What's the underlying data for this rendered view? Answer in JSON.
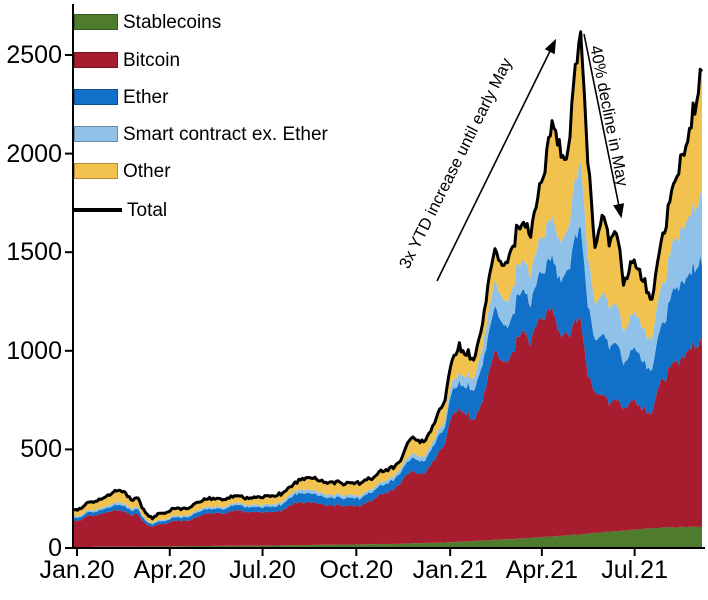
{
  "legend": {
    "items": [
      {
        "label": "Stablecoins",
        "color": "#4f7b2d",
        "swatch": "box"
      },
      {
        "label": "Bitcoin",
        "color": "#a81c30",
        "swatch": "box"
      },
      {
        "label": "Ether",
        "color": "#1170c7",
        "swatch": "box"
      },
      {
        "label": "Smart contract ex. Ether",
        "color": "#90c1e9",
        "swatch": "box"
      },
      {
        "label": "Other",
        "color": "#f1c24e",
        "swatch": "box"
      },
      {
        "label": "Total",
        "color": "#000000",
        "swatch": "line"
      }
    ]
  },
  "annotations": {
    "increase": "3x YTD increase until early May",
    "decline": "40% decline in May"
  },
  "chart_data": {
    "type": "area",
    "subtype": "stacked_area_with_total_line",
    "x_unit": "weeks since Jan 2020",
    "x_range_weeks": [
      0,
      88
    ],
    "ylim": [
      0,
      2700
    ],
    "grid": false,
    "legend_position": "top-left inside plot",
    "y_ticks": [
      0,
      500,
      1000,
      1500,
      2000,
      2500
    ],
    "x_ticks": [
      {
        "label": "Jan.20",
        "week": 0
      },
      {
        "label": "Apr.20",
        "week": 13.0
      },
      {
        "label": "Jul.20",
        "week": 26.0
      },
      {
        "label": "Oct.20",
        "week": 39.14
      },
      {
        "label": "Jan.21",
        "week": 52.29
      },
      {
        "label": "Apr.21",
        "week": 65.14
      },
      {
        "label": "Jul.21",
        "week": 78.14
      }
    ],
    "values_unit": "billions of US dollars",
    "total_is_sum_of_series": true,
    "roughness": {
      "per_series": 0.018,
      "correlated": 0.02,
      "high_freq": 0.008,
      "upsample": 4
    },
    "series": [
      {
        "name": "Stablecoins",
        "color": "#4f7b2d",
        "values": [
          5,
          5,
          5,
          6,
          6,
          6,
          6,
          6,
          7,
          7,
          8,
          8,
          8,
          8,
          9,
          9,
          10,
          10,
          10,
          10,
          11,
          11,
          11,
          11,
          12,
          12,
          12,
          12,
          13,
          13,
          14,
          14,
          15,
          15,
          16,
          16,
          17,
          17,
          17,
          18,
          18,
          19,
          19,
          20,
          20,
          21,
          22,
          23,
          24,
          25,
          26,
          27,
          28,
          30,
          32,
          33,
          35,
          37,
          39,
          41,
          43,
          45,
          47,
          49,
          51,
          54,
          57,
          60,
          62,
          64,
          66,
          68,
          72,
          76,
          80,
          83,
          86,
          89,
          92,
          95,
          98,
          100,
          102,
          104,
          105,
          106,
          107,
          108,
          108
        ]
      },
      {
        "name": "Bitcoin",
        "color": "#a81c30",
        "values": [
          130,
          140,
          158,
          162,
          168,
          178,
          188,
          180,
          160,
          162,
          112,
          98,
          112,
          117,
          132,
          125,
          128,
          142,
          162,
          165,
          170,
          162,
          176,
          180,
          172,
          171,
          170,
          172,
          170,
          176,
          195,
          215,
          218,
          222,
          212,
          200,
          196,
          200,
          195,
          200,
          195,
          210,
          225,
          250,
          260,
          285,
          320,
          365,
          355,
          350,
          400,
          450,
          510,
          640,
          680,
          660,
          600,
          690,
          830,
          950,
          880,
          910,
          1010,
          1060,
          990,
          1100,
          1130,
          1180,
          1040,
          1010,
          1060,
          1090,
          820,
          700,
          700,
          660,
          680,
          620,
          650,
          640,
          600,
          580,
          740,
          760,
          850,
          850,
          900,
          930,
          945
        ]
      },
      {
        "name": "Ether",
        "color": "#1170c7",
        "values": [
          15,
          16,
          18,
          18,
          20,
          22,
          29,
          28,
          24,
          25,
          15,
          13,
          15,
          15,
          18,
          17,
          19,
          23,
          23,
          22,
          23,
          22,
          27,
          27,
          26,
          25,
          26,
          27,
          27,
          30,
          36,
          44,
          48,
          47,
          43,
          39,
          38,
          41,
          39,
          40,
          38,
          42,
          44,
          44,
          46,
          51,
          55,
          65,
          68,
          63,
          73,
          85,
          84,
          125,
          130,
          140,
          150,
          180,
          200,
          220,
          190,
          175,
          210,
          210,
          195,
          220,
          240,
          265,
          270,
          310,
          400,
          470,
          360,
          260,
          310,
          290,
          290,
          230,
          250,
          270,
          230,
          220,
          270,
          300,
          370,
          380,
          380,
          395,
          420
        ]
      },
      {
        "name": "Smart contract ex. Ether",
        "color": "#90c1e9",
        "values": [
          8,
          8,
          9,
          10,
          10,
          11,
          12,
          12,
          10,
          10,
          7,
          6,
          7,
          7,
          8,
          8,
          8,
          9,
          10,
          10,
          10,
          10,
          11,
          11,
          11,
          11,
          11,
          12,
          12,
          13,
          15,
          17,
          19,
          19,
          17,
          16,
          15,
          16,
          15,
          15,
          14,
          15,
          15,
          16,
          17,
          18,
          20,
          22,
          23,
          22,
          25,
          27,
          32,
          45,
          50,
          55,
          60,
          80,
          105,
          130,
          125,
          130,
          150,
          155,
          150,
          170,
          185,
          205,
          195,
          200,
          270,
          330,
          250,
          180,
          210,
          200,
          200,
          165,
          175,
          180,
          165,
          155,
          190,
          210,
          250,
          270,
          290,
          310,
          330
        ]
      },
      {
        "name": "Other",
        "color": "#f1c24e",
        "values": [
          32,
          36,
          40,
          44,
          46,
          53,
          60,
          59,
          44,
          46,
          33,
          25,
          33,
          33,
          38,
          36,
          35,
          41,
          40,
          43,
          41,
          40,
          35,
          36,
          34,
          36,
          41,
          42,
          43,
          43,
          40,
          40,
          55,
          62,
          62,
          59,
          64,
          61,
          59,
          62,
          65,
          59,
          52,
          55,
          52,
          45,
          43,
          85,
          75,
          80,
          76,
          91,
          106,
          110,
          138,
          112,
          95,
          113,
          156,
          159,
          162,
          220,
          193,
          186,
          214,
          236,
          338,
          490,
          483,
          366,
          524,
          652,
          498,
          284,
          400,
          337,
          374,
          246,
          263,
          245,
          247,
          195,
          218,
          266,
          275,
          364,
          403,
          507,
          667
        ]
      }
    ],
    "total_series_name": "Total",
    "total_color": "#000000",
    "key_points": {
      "feb_2020_local_peak": 295,
      "mar_2020_covid_low": 150,
      "jan_2021_peak": 1100,
      "apr_2021_peak": 2260,
      "early_may_2021_peak": 2610,
      "late_may_2021_trough": 1400,
      "jul_2021_low": 1250,
      "end_value": 2470
    }
  }
}
